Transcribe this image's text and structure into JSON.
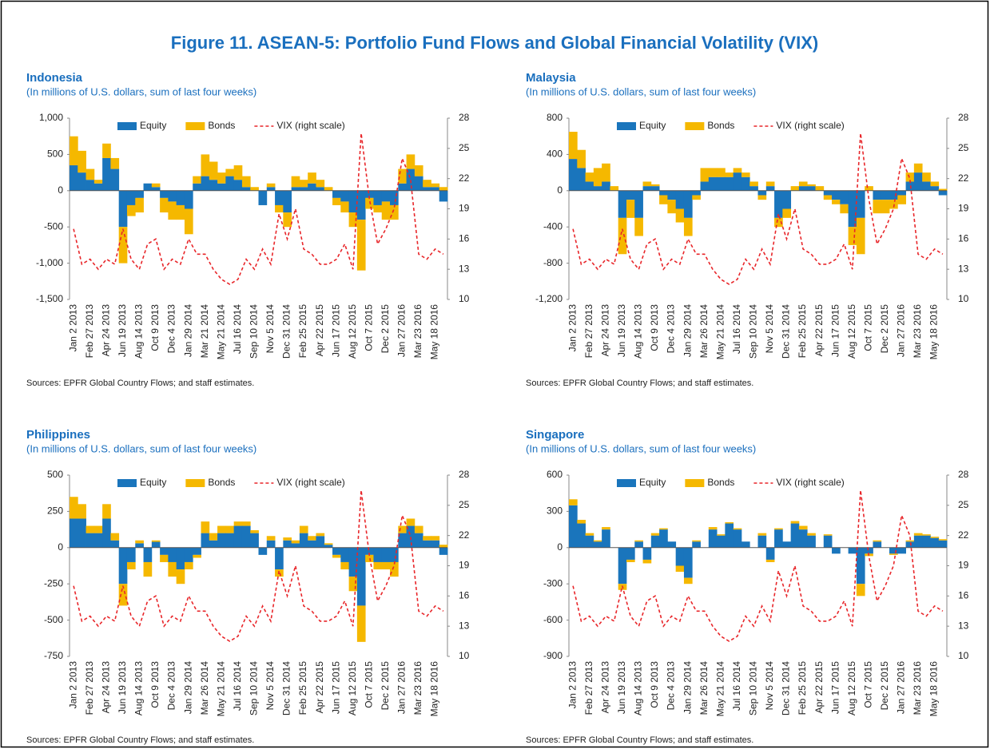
{
  "title": "Figure 11. ASEAN-5: Portfolio Fund Flows and Global Financial Volatility (VIX)",
  "chart_data": [
    {
      "type": "bar",
      "title": "Indonesia",
      "subtitle": "(In millions of U.S. dollars, sum of last four weeks)",
      "source": "Sources: EPFR Global Country Flows; and staff estimates.",
      "categories": [
        "Jan 2 2013",
        null,
        "Feb 27 2013",
        null,
        "Apr 24 2013",
        null,
        "Jun 19 2013",
        null,
        "Aug 14 2013",
        null,
        "Oct 9 2013",
        null,
        "Dec 4 2013",
        null,
        "Jan 29 2014",
        null,
        "Mar 21 2014",
        null,
        "May 21 2014",
        null,
        "Jul 16 2014",
        null,
        "Sep 10 2014",
        null,
        "Nov 5 2014",
        null,
        "Dec 31 2014",
        null,
        "Feb 25 2015",
        null,
        "Apr 22 2015",
        null,
        "Jun 17 2015",
        null,
        "Aug 12 2015",
        null,
        "Oct 7 2015",
        null,
        "Dec 2 2015",
        null,
        "Jan 27 2016",
        null,
        "Mar 23 2016",
        null,
        "May 18 2016",
        null
      ],
      "series": [
        {
          "name": "Equity",
          "color": "#1a75bc",
          "values": [
            350,
            250,
            150,
            100,
            450,
            300,
            -500,
            -200,
            -100,
            100,
            50,
            -100,
            -150,
            -200,
            -250,
            100,
            200,
            150,
            100,
            200,
            150,
            50,
            0,
            -200,
            50,
            -200,
            -300,
            50,
            50,
            100,
            50,
            0,
            -100,
            -150,
            -300,
            -400,
            -100,
            -200,
            -150,
            -200,
            100,
            300,
            200,
            50,
            50,
            -150
          ]
        },
        {
          "name": "Bonds",
          "color": "#f5b800",
          "values": [
            400,
            300,
            150,
            50,
            200,
            150,
            -500,
            -150,
            -200,
            0,
            50,
            -200,
            -250,
            -200,
            -350,
            100,
            300,
            250,
            150,
            100,
            200,
            150,
            50,
            0,
            50,
            -100,
            -200,
            150,
            100,
            150,
            100,
            50,
            -100,
            -150,
            -200,
            -700,
            -150,
            -100,
            -250,
            -200,
            200,
            200,
            150,
            100,
            50,
            50
          ]
        },
        {
          "name": "VIX (right scale)",
          "color": "#e8262a",
          "type": "line",
          "axis": "y2",
          "values": [
            17,
            13.5,
            14,
            13,
            14,
            13.5,
            17,
            14,
            13,
            15.5,
            16,
            13,
            14,
            13.5,
            16,
            14.5,
            14.5,
            13,
            12,
            11.5,
            12,
            14,
            13,
            15,
            13.5,
            18.5,
            16,
            19,
            15,
            14.5,
            13.5,
            13.5,
            14,
            15.5,
            13,
            26.5,
            20,
            15.5,
            17,
            19,
            24,
            22,
            14.5,
            14,
            15,
            14.5
          ]
        }
      ],
      "ylim": [
        -1500,
        1000
      ],
      "yticks": [
        {
          "value": -1500,
          "label": "-1,500"
        },
        {
          "value": -1000,
          "label": "-1,000"
        },
        -500,
        0,
        500,
        {
          "value": 1000,
          "label": "1,000"
        }
      ],
      "y2lim": [
        10,
        28
      ],
      "y2ticks": [
        10,
        13,
        16,
        19,
        22,
        25,
        28
      ]
    },
    {
      "type": "bar",
      "title": "Malaysia",
      "subtitle": "(In millions of U.S. dollars, sum of last four weeks)",
      "source": "Sources: EPFR Global Country Flows; and staff estimates.",
      "categories": [
        "Jan 2 2013",
        null,
        "Feb 27 2013",
        null,
        "Apr 24 2013",
        null,
        "Jun 19 2013",
        null,
        "Aug 14 2013",
        null,
        "Oct 9 2013",
        null,
        "Dec 4 2013",
        null,
        "Jan 29 2014",
        null,
        "Mar 26 2014",
        null,
        "May 21 2014",
        null,
        "Jul 16 2014",
        null,
        "Sep 10 2014",
        null,
        "Nov 5 2014",
        null,
        "Dec 31 2014",
        null,
        "Feb 25 2015",
        null,
        "Apr 22 2015",
        null,
        "Jun 17 2015",
        null,
        "Aug 12 2015",
        null,
        "Oct 7 2015",
        null,
        "Dec 2 2015",
        null,
        "Jan 27 2016",
        null,
        "Mar 23 2016",
        null,
        "May 18 2016",
        null
      ],
      "series": [
        {
          "name": "Equity",
          "color": "#1a75bc",
          "values": [
            350,
            250,
            100,
            50,
            100,
            0,
            -300,
            -100,
            -300,
            50,
            50,
            -50,
            -100,
            -200,
            -300,
            -50,
            100,
            150,
            150,
            150,
            200,
            150,
            50,
            -50,
            50,
            -300,
            -200,
            0,
            50,
            50,
            0,
            -50,
            -100,
            -150,
            -400,
            -300,
            0,
            -100,
            -100,
            -100,
            -50,
            100,
            200,
            100,
            50,
            -50
          ]
        },
        {
          "name": "Bonds",
          "color": "#f5b800",
          "values": [
            300,
            200,
            100,
            200,
            200,
            50,
            -400,
            -200,
            -200,
            50,
            20,
            -100,
            -150,
            -150,
            -200,
            -50,
            150,
            100,
            100,
            50,
            50,
            50,
            50,
            -50,
            50,
            -100,
            -100,
            50,
            50,
            20,
            50,
            -50,
            -50,
            -100,
            -200,
            -400,
            50,
            -150,
            -150,
            -100,
            -100,
            100,
            100,
            100,
            50,
            20
          ]
        },
        {
          "name": "VIX (right scale)",
          "color": "#e8262a",
          "type": "line",
          "axis": "y2",
          "values": [
            17,
            13.5,
            14,
            13,
            14,
            13.5,
            17,
            14,
            13,
            15.5,
            16,
            13,
            14,
            13.5,
            16,
            14.5,
            14.5,
            13,
            12,
            11.5,
            12,
            14,
            13,
            15,
            13.5,
            18.5,
            16,
            19,
            15,
            14.5,
            13.5,
            13.5,
            14,
            15.5,
            13,
            26.5,
            20,
            15.5,
            17,
            19,
            24,
            22,
            14.5,
            14,
            15,
            14.5
          ]
        }
      ],
      "ylim": [
        -1200,
        800
      ],
      "yticks": [
        {
          "value": -1200,
          "label": "-1,200"
        },
        -800,
        -400,
        0,
        400,
        800
      ],
      "y2lim": [
        10,
        28
      ],
      "y2ticks": [
        10,
        13,
        16,
        19,
        22,
        25,
        28
      ]
    },
    {
      "type": "bar",
      "title": "Philippines",
      "subtitle": "(In millions of U.S. dollars, sum of last four weeks)",
      "source": "Sources: EPFR Global Country Flows; and staff estimates.",
      "categories": [
        "Jan 2 2013",
        null,
        "Feb 27 2013",
        null,
        "Apr 24 2013",
        null,
        "Jun 19 2013",
        null,
        "Aug 14 2013",
        null,
        "Oct 9 2013",
        null,
        "Dec 4 2013",
        null,
        "Jan 29 2014",
        null,
        "Mar 26 2014",
        null,
        "May 21 2014",
        null,
        "Jul 16 2014",
        null,
        "Sep 10 2014",
        null,
        "Nov 5 2014",
        null,
        "Dec 31 2014",
        null,
        "Feb 25 2015",
        null,
        "Apr 22 2015",
        null,
        "Jun 17 2015",
        null,
        "Aug 12 2015",
        null,
        "Oct 7 2015",
        null,
        "Dec 2 2015",
        null,
        "Jan 27 2016",
        null,
        "Mar 23 2016",
        null,
        "May 18 2016",
        null
      ],
      "series": [
        {
          "name": "Equity",
          "color": "#1a75bc",
          "values": [
            200,
            200,
            100,
            100,
            200,
            50,
            -250,
            -100,
            30,
            -100,
            40,
            -50,
            -100,
            -150,
            -100,
            -50,
            100,
            50,
            100,
            100,
            150,
            150,
            100,
            -50,
            50,
            -150,
            50,
            30,
            100,
            50,
            80,
            20,
            -50,
            -100,
            -200,
            -400,
            -50,
            -100,
            -100,
            -100,
            100,
            150,
            100,
            50,
            50,
            -50
          ]
        },
        {
          "name": "Bonds",
          "color": "#f5b800",
          "values": [
            150,
            100,
            50,
            50,
            100,
            50,
            -150,
            -50,
            20,
            -100,
            10,
            -50,
            -100,
            -100,
            -50,
            -20,
            80,
            50,
            50,
            50,
            30,
            30,
            20,
            0,
            30,
            -50,
            20,
            20,
            50,
            30,
            20,
            10,
            -20,
            -50,
            -100,
            -250,
            -50,
            -50,
            -50,
            -100,
            50,
            50,
            50,
            30,
            30,
            20
          ]
        },
        {
          "name": "VIX (right scale)",
          "color": "#e8262a",
          "type": "line",
          "axis": "y2",
          "values": [
            17,
            13.5,
            14,
            13,
            14,
            13.5,
            17,
            14,
            13,
            15.5,
            16,
            13,
            14,
            13.5,
            16,
            14.5,
            14.5,
            13,
            12,
            11.5,
            12,
            14,
            13,
            15,
            13.5,
            18.5,
            16,
            19,
            15,
            14.5,
            13.5,
            13.5,
            14,
            15.5,
            13,
            26.5,
            20,
            15.5,
            17,
            19,
            24,
            22,
            14.5,
            14,
            15,
            14.5
          ]
        }
      ],
      "ylim": [
        -750,
        500
      ],
      "yticks": [
        -750,
        -500,
        -250,
        0,
        250,
        500
      ],
      "y2lim": [
        10,
        28
      ],
      "y2ticks": [
        10,
        13,
        16,
        19,
        22,
        25,
        28
      ]
    },
    {
      "type": "bar",
      "title": "Singapore",
      "subtitle": "(In millions of U.S. dollars, sum of last four weeks)",
      "source": "Sources: EPFR Global Country Flows; and staff estimates.",
      "categories": [
        "Jan 2 2013",
        null,
        "Feb 27 2013",
        null,
        "Apr 24 2013",
        null,
        "Jun 19 2013",
        null,
        "Aug 14 2013",
        null,
        "Oct 9 2013",
        null,
        "Dec 4 2013",
        null,
        "Jan 29 2014",
        null,
        "Mar 26 2014",
        null,
        "May 21 2014",
        null,
        "Jul 16 2014",
        null,
        "Sep 10 2014",
        null,
        "Nov 5 2014",
        null,
        "Dec 31 2014",
        null,
        "Feb 25 2015",
        null,
        "Apr 22 2015",
        null,
        "Jun 17 2015",
        null,
        "Aug 12 2015",
        null,
        "Oct 7 2015",
        null,
        "Dec 2 2015",
        null,
        "Jan 27 2016",
        null,
        "Mar 23 2016",
        null,
        "May 18 2016",
        null
      ],
      "series": [
        {
          "name": "Equity",
          "color": "#1a75bc",
          "values": [
            350,
            200,
            100,
            50,
            150,
            0,
            -300,
            -100,
            50,
            -100,
            100,
            150,
            50,
            -150,
            -250,
            50,
            0,
            150,
            100,
            200,
            150,
            50,
            0,
            100,
            -100,
            150,
            50,
            200,
            150,
            100,
            0,
            100,
            -50,
            0,
            -50,
            -300,
            -50,
            50,
            0,
            -50,
            -50,
            50,
            100,
            100,
            80,
            60
          ]
        },
        {
          "name": "Bonds",
          "color": "#f5b800",
          "values": [
            50,
            30,
            20,
            10,
            20,
            0,
            -50,
            -20,
            10,
            -30,
            20,
            10,
            0,
            -50,
            -50,
            10,
            0,
            20,
            10,
            10,
            10,
            0,
            0,
            20,
            -20,
            10,
            0,
            20,
            30,
            20,
            0,
            10,
            0,
            0,
            0,
            -100,
            -20,
            10,
            0,
            -10,
            0,
            10,
            20,
            10,
            10,
            10
          ]
        },
        {
          "name": "VIX (right scale)",
          "color": "#e8262a",
          "type": "line",
          "axis": "y2",
          "values": [
            17,
            13.5,
            14,
            13,
            14,
            13.5,
            17,
            14,
            13,
            15.5,
            16,
            13,
            14,
            13.5,
            16,
            14.5,
            14.5,
            13,
            12,
            11.5,
            12,
            14,
            13,
            15,
            13.5,
            18.5,
            16,
            19,
            15,
            14.5,
            13.5,
            13.5,
            14,
            15.5,
            13,
            26.5,
            20,
            15.5,
            17,
            19,
            24,
            22,
            14.5,
            14,
            15,
            14.5
          ]
        }
      ],
      "ylim": [
        -900,
        600
      ],
      "yticks": [
        -900,
        -600,
        -300,
        0,
        300,
        600
      ],
      "y2lim": [
        10,
        28
      ],
      "y2ticks": [
        10,
        13,
        16,
        19,
        22,
        25,
        28
      ]
    }
  ]
}
